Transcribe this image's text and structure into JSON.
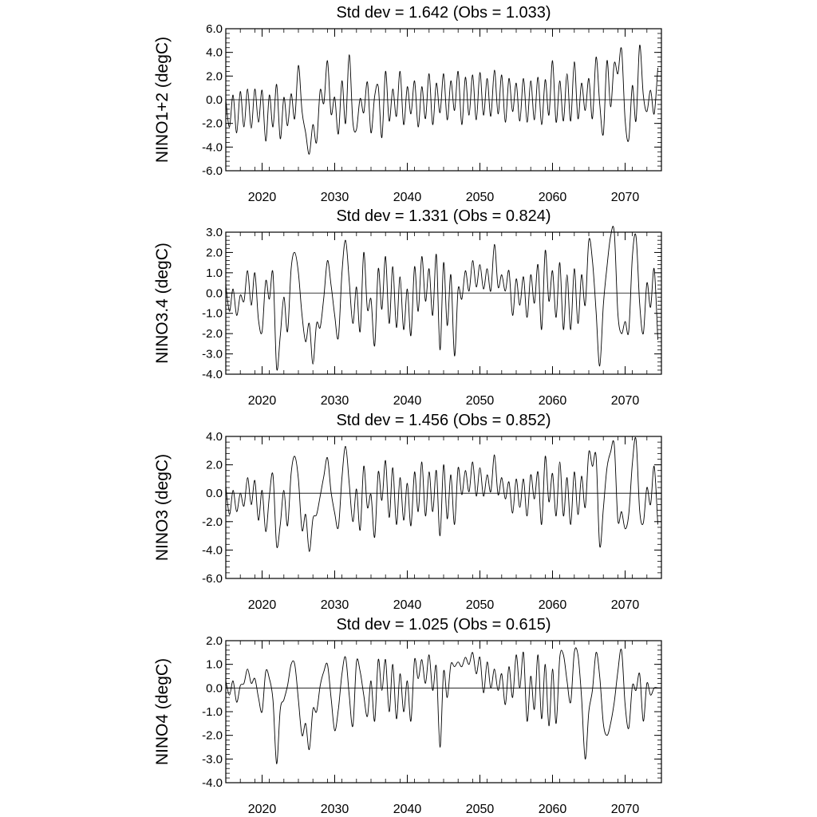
{
  "chart_data": [
    {
      "type": "line",
      "title": "Std dev = 1.642 (Obs = 1.033)",
      "ylabel": "NINO1+2 (degC)",
      "xlim": [
        2015,
        2075
      ],
      "ylim": [
        -6.0,
        6.0
      ],
      "yticks": [
        -6.0,
        -4.0,
        -2.0,
        0.0,
        2.0,
        4.0,
        6.0
      ],
      "ytick_labels": [
        "-6.0",
        "-4.0",
        "-2.0",
        "0.0",
        "2.0",
        "4.0",
        "6.0"
      ],
      "xticks": [
        2020,
        2030,
        2040,
        2050,
        2060,
        2070
      ],
      "xtick_labels": [
        "2020",
        "2030",
        "2040",
        "2050",
        "2060",
        "2070"
      ],
      "zero_line": true,
      "x": [
        2015.0,
        2015.5,
        2016.0,
        2016.5,
        2017.0,
        2017.5,
        2018.0,
        2018.5,
        2019.0,
        2019.5,
        2020.0,
        2020.5,
        2021.0,
        2021.5,
        2022.0,
        2022.5,
        2023.0,
        2023.5,
        2024.0,
        2024.5,
        2025.0,
        2025.5,
        2026.0,
        2026.5,
        2027.0,
        2027.5,
        2028.0,
        2028.5,
        2029.0,
        2029.5,
        2030.0,
        2030.5,
        2031.0,
        2031.5,
        2032.0,
        2032.5,
        2033.0,
        2033.5,
        2034.0,
        2034.5,
        2035.0,
        2035.5,
        2036.0,
        2036.5,
        2037.0,
        2037.5,
        2038.0,
        2038.5,
        2039.0,
        2039.5,
        2040.0,
        2040.5,
        2041.0,
        2041.5,
        2042.0,
        2042.5,
        2043.0,
        2043.5,
        2044.0,
        2044.5,
        2045.0,
        2045.5,
        2046.0,
        2046.5,
        2047.0,
        2047.5,
        2048.0,
        2048.5,
        2049.0,
        2049.5,
        2050.0,
        2050.5,
        2051.0,
        2051.5,
        2052.0,
        2052.5,
        2053.0,
        2053.5,
        2054.0,
        2054.5,
        2055.0,
        2055.5,
        2056.0,
        2056.5,
        2057.0,
        2057.5,
        2058.0,
        2058.5,
        2059.0,
        2059.5,
        2060.0,
        2060.5,
        2061.0,
        2061.5,
        2062.0,
        2062.5,
        2063.0,
        2063.5,
        2064.0,
        2064.5,
        2065.0,
        2065.5,
        2066.0,
        2066.5,
        2067.0,
        2067.5,
        2068.0,
        2068.5,
        2069.0,
        2069.5,
        2070.0,
        2070.5,
        2071.0,
        2071.5,
        2072.0,
        2072.5,
        2073.0,
        2073.5,
        2074.0,
        2074.5
      ],
      "y": [
        0.0,
        -2.3,
        0.4,
        -2.8,
        0.7,
        -2.3,
        0.9,
        -2.4,
        0.9,
        -1.9,
        0.8,
        -3.5,
        0.4,
        -2.3,
        1.3,
        -3.3,
        0.2,
        -2.2,
        0.5,
        -1.6,
        2.9,
        -1.0,
        -2.8,
        -4.6,
        -2.1,
        -3.6,
        0.8,
        -0.3,
        3.3,
        -1.2,
        0.2,
        -2.9,
        1.6,
        -2.0,
        3.8,
        -1.9,
        -2.5,
        0.1,
        -1.1,
        1.5,
        -2.8,
        0.3,
        1.1,
        -3.2,
        2.4,
        -1.8,
        0.9,
        -1.4,
        2.4,
        -2.1,
        1.1,
        -1.2,
        1.6,
        -2.3,
        1.1,
        -1.6,
        2.2,
        -2.1,
        1.4,
        -1.1,
        2.2,
        -1.7,
        1.6,
        -0.9,
        2.4,
        -2.1,
        1.9,
        -1.3,
        2.1,
        -1.7,
        2.3,
        -1.3,
        1.8,
        -1.4,
        2.5,
        -1.2,
        2.1,
        -1.9,
        1.8,
        -1.0,
        1.4,
        -1.8,
        1.8,
        -1.9,
        1.6,
        -1.7,
        1.9,
        -2.1,
        1.7,
        -1.3,
        3.3,
        -1.9,
        1.6,
        -1.8,
        2.2,
        -1.8,
        3.2,
        -1.6,
        1.4,
        -0.9,
        1.8,
        -1.6,
        3.6,
        -0.3,
        -2.9,
        3.3,
        -0.6,
        3.1,
        2.2,
        4.3,
        -1.7,
        -3.4,
        1.2,
        -1.8,
        4.6,
        0.4,
        -1.0,
        0.8,
        -1.2,
        2.7
      ]
    },
    {
      "type": "line",
      "title": "Std dev = 1.331 (Obs = 0.824)",
      "ylabel": "NINO3.4 (degC)",
      "xlim": [
        2015,
        2075
      ],
      "ylim": [
        -4.0,
        3.0
      ],
      "yticks": [
        -4.0,
        -3.0,
        -2.0,
        -1.0,
        0.0,
        1.0,
        2.0,
        3.0
      ],
      "ytick_labels": [
        "-4.0",
        "-3.0",
        "-2.0",
        "-1.0",
        "0.0",
        "1.0",
        "2.0",
        "3.0"
      ],
      "xticks": [
        2020,
        2030,
        2040,
        2050,
        2060,
        2070
      ],
      "xtick_labels": [
        "2020",
        "2030",
        "2040",
        "2050",
        "2060",
        "2070"
      ],
      "zero_line": true,
      "x": [
        2015.0,
        2015.5,
        2016.0,
        2016.5,
        2017.0,
        2017.5,
        2018.0,
        2018.5,
        2019.0,
        2019.5,
        2020.0,
        2020.5,
        2021.0,
        2021.5,
        2022.0,
        2022.5,
        2023.0,
        2023.5,
        2024.0,
        2024.5,
        2025.0,
        2025.5,
        2026.0,
        2026.5,
        2027.0,
        2027.5,
        2028.0,
        2028.5,
        2029.0,
        2029.5,
        2030.0,
        2030.5,
        2031.0,
        2031.5,
        2032.0,
        2032.5,
        2033.0,
        2033.5,
        2034.0,
        2034.5,
        2035.0,
        2035.5,
        2036.0,
        2036.5,
        2037.0,
        2037.5,
        2038.0,
        2038.5,
        2039.0,
        2039.5,
        2040.0,
        2040.5,
        2041.0,
        2041.5,
        2042.0,
        2042.5,
        2043.0,
        2043.5,
        2044.0,
        2044.5,
        2045.0,
        2045.5,
        2046.0,
        2046.5,
        2047.0,
        2047.5,
        2048.0,
        2048.5,
        2049.0,
        2049.5,
        2050.0,
        2050.5,
        2051.0,
        2051.5,
        2052.0,
        2052.5,
        2053.0,
        2053.5,
        2054.0,
        2054.5,
        2055.0,
        2055.5,
        2056.0,
        2056.5,
        2057.0,
        2057.5,
        2058.0,
        2058.5,
        2059.0,
        2059.5,
        2060.0,
        2060.5,
        2061.0,
        2061.5,
        2062.0,
        2062.5,
        2063.0,
        2063.5,
        2064.0,
        2064.5,
        2065.0,
        2065.5,
        2066.0,
        2066.5,
        2067.0,
        2067.5,
        2068.0,
        2068.5,
        2069.0,
        2069.5,
        2070.0,
        2070.5,
        2071.0,
        2071.5,
        2072.0,
        2072.5,
        2073.0,
        2073.5,
        2074.0,
        2074.5
      ],
      "y": [
        0.4,
        -0.9,
        0.2,
        -1.1,
        -0.1,
        -0.4,
        1.1,
        -0.6,
        1.0,
        -1.3,
        -1.9,
        0.6,
        -0.3,
        1.0,
        -3.7,
        -2.1,
        -0.2,
        -1.9,
        1.2,
        2.0,
        1.0,
        -1.1,
        -2.4,
        -1.5,
        -3.5,
        -1.5,
        -1.7,
        -0.2,
        1.6,
        0.4,
        -1.1,
        -2.2,
        1.0,
        2.6,
        0.6,
        -1.5,
        0.3,
        -1.9,
        2.0,
        -0.8,
        -0.3,
        -2.6,
        1.2,
        -0.8,
        1.8,
        -1.5,
        1.3,
        -1.7,
        0.8,
        -1.8,
        0.2,
        -2.1,
        1.3,
        -0.9,
        1.8,
        -0.4,
        1.2,
        -1.1,
        1.9,
        -2.8,
        1.5,
        -1.6,
        0.9,
        -3.1,
        0.2,
        -0.3,
        1.1,
        0.1,
        1.6,
        0.3,
        1.4,
        0.2,
        1.2,
        0.1,
        2.4,
        0.3,
        0.9,
        0.1,
        1.1,
        -1.1,
        0.7,
        -0.6,
        0.8,
        -1.2,
        0.9,
        -0.5,
        1.4,
        -1.8,
        2.1,
        -0.4,
        1.1,
        -1.2,
        1.5,
        -1.8,
        0.9,
        -1.8,
        1.2,
        -1.5,
        0.9,
        -0.6,
        2.6,
        1.6,
        -0.9,
        -3.6,
        -0.6,
        1.3,
        2.8,
        3.0,
        -1.0,
        -2.0,
        -1.4,
        -1.9,
        1.8,
        2.8,
        -0.5,
        -2.0,
        0.5,
        -0.7,
        1.2,
        -2.3
      ]
    },
    {
      "type": "line",
      "title": "Std dev = 1.456 (Obs = 0.852)",
      "ylabel": "NINO3 (degC)",
      "xlim": [
        2015,
        2075
      ],
      "ylim": [
        -6.0,
        4.0
      ],
      "yticks": [
        -6.0,
        -4.0,
        -2.0,
        0.0,
        2.0,
        4.0
      ],
      "ytick_labels": [
        "-6.0",
        "-4.0",
        "-2.0",
        "0.0",
        "2.0",
        "4.0"
      ],
      "xticks": [
        2020,
        2030,
        2040,
        2050,
        2060,
        2070
      ],
      "xtick_labels": [
        "2020",
        "2030",
        "2040",
        "2050",
        "2060",
        "2070"
      ],
      "zero_line": true,
      "x": [
        2015.0,
        2015.5,
        2016.0,
        2016.5,
        2017.0,
        2017.5,
        2018.0,
        2018.5,
        2019.0,
        2019.5,
        2020.0,
        2020.5,
        2021.0,
        2021.5,
        2022.0,
        2022.5,
        2023.0,
        2023.5,
        2024.0,
        2024.5,
        2025.0,
        2025.5,
        2026.0,
        2026.5,
        2027.0,
        2027.5,
        2028.0,
        2028.5,
        2029.0,
        2029.5,
        2030.0,
        2030.5,
        2031.0,
        2031.5,
        2032.0,
        2032.5,
        2033.0,
        2033.5,
        2034.0,
        2034.5,
        2035.0,
        2035.5,
        2036.0,
        2036.5,
        2037.0,
        2037.5,
        2038.0,
        2038.5,
        2039.0,
        2039.5,
        2040.0,
        2040.5,
        2041.0,
        2041.5,
        2042.0,
        2042.5,
        2043.0,
        2043.5,
        2044.0,
        2044.5,
        2045.0,
        2045.5,
        2046.0,
        2046.5,
        2047.0,
        2047.5,
        2048.0,
        2048.5,
        2049.0,
        2049.5,
        2050.0,
        2050.5,
        2051.0,
        2051.5,
        2052.0,
        2052.5,
        2053.0,
        2053.5,
        2054.0,
        2054.5,
        2055.0,
        2055.5,
        2056.0,
        2056.5,
        2057.0,
        2057.5,
        2058.0,
        2058.5,
        2059.0,
        2059.5,
        2060.0,
        2060.5,
        2061.0,
        2061.5,
        2062.0,
        2062.5,
        2063.0,
        2063.5,
        2064.0,
        2064.5,
        2065.0,
        2065.5,
        2066.0,
        2066.5,
        2067.0,
        2067.5,
        2068.0,
        2068.5,
        2069.0,
        2069.5,
        2070.0,
        2070.5,
        2071.0,
        2071.5,
        2072.0,
        2072.5,
        2073.0,
        2073.5,
        2074.0,
        2074.5
      ],
      "y": [
        0.5,
        -1.5,
        0.2,
        -1.3,
        0.0,
        -0.9,
        1.1,
        -0.8,
        0.9,
        -1.9,
        0.2,
        -2.7,
        -0.2,
        1.3,
        -3.7,
        -2.2,
        0.2,
        -2.3,
        1.4,
        2.6,
        1.0,
        -2.6,
        -1.5,
        -4.1,
        -1.8,
        -1.5,
        -0.2,
        1.2,
        2.5,
        0.1,
        -1.4,
        -2.4,
        1.1,
        3.3,
        0.7,
        -2.0,
        0.3,
        -2.6,
        1.9,
        -1.0,
        -0.1,
        -3.1,
        1.5,
        -0.5,
        2.3,
        -1.7,
        1.8,
        -2.2,
        1.1,
        -1.9,
        0.7,
        -2.3,
        1.5,
        -1.3,
        2.2,
        -1.6,
        1.5,
        -1.3,
        1.6,
        -3.0,
        2.0,
        -1.8,
        1.3,
        -2.2,
        1.8,
        -0.1,
        1.6,
        0.1,
        2.2,
        -0.2,
        1.8,
        -0.2,
        1.3,
        0.1,
        2.7,
        -0.1,
        1.1,
        -0.4,
        0.8,
        -1.4,
        1.0,
        -1.0,
        1.0,
        -1.6,
        1.3,
        -0.4,
        1.5,
        -2.2,
        2.6,
        -0.6,
        1.4,
        -1.6,
        2.2,
        -1.6,
        1.1,
        -2.2,
        1.5,
        -1.5,
        1.2,
        -1.0,
        2.9,
        1.9,
        2.6,
        -3.7,
        -1.1,
        1.8,
        2.9,
        3.4,
        -1.9,
        -1.3,
        -2.5,
        -1.5,
        2.1,
        3.8,
        -1.2,
        -2.1,
        0.4,
        -0.8,
        1.9,
        -2.2
      ]
    },
    {
      "type": "line",
      "title": "Std dev = 1.025 (Obs = 0.615)",
      "ylabel": "NINO4 (degC)",
      "xlim": [
        2015,
        2075
      ],
      "ylim": [
        -4.0,
        2.0
      ],
      "yticks": [
        -4.0,
        -3.0,
        -2.0,
        -1.0,
        0.0,
        1.0,
        2.0
      ],
      "ytick_labels": [
        "-4.0",
        "-3.0",
        "-2.0",
        "-1.0",
        "0.0",
        "1.0",
        "2.0"
      ],
      "xticks": [
        2020,
        2030,
        2040,
        2050,
        2060,
        2070
      ],
      "xtick_labels": [
        "2020",
        "2030",
        "2040",
        "2050",
        "2060",
        "2070"
      ],
      "zero_line": true,
      "x": [
        2015.0,
        2015.5,
        2016.0,
        2016.5,
        2017.0,
        2017.5,
        2018.0,
        2018.5,
        2019.0,
        2019.5,
        2020.0,
        2020.5,
        2021.0,
        2021.5,
        2022.0,
        2022.5,
        2023.0,
        2023.5,
        2024.0,
        2024.5,
        2025.0,
        2025.5,
        2026.0,
        2026.5,
        2027.0,
        2027.5,
        2028.0,
        2028.5,
        2029.0,
        2029.5,
        2030.0,
        2030.5,
        2031.0,
        2031.5,
        2032.0,
        2032.5,
        2033.0,
        2033.5,
        2034.0,
        2034.5,
        2035.0,
        2035.5,
        2036.0,
        2036.5,
        2037.0,
        2037.5,
        2038.0,
        2038.5,
        2039.0,
        2039.5,
        2040.0,
        2040.5,
        2041.0,
        2041.5,
        2042.0,
        2042.5,
        2043.0,
        2043.5,
        2044.0,
        2044.5,
        2045.0,
        2045.5,
        2046.0,
        2046.5,
        2047.0,
        2047.5,
        2048.0,
        2048.5,
        2049.0,
        2049.5,
        2050.0,
        2050.5,
        2051.0,
        2051.5,
        2052.0,
        2052.5,
        2053.0,
        2053.5,
        2054.0,
        2054.5,
        2055.0,
        2055.5,
        2056.0,
        2056.5,
        2057.0,
        2057.5,
        2058.0,
        2058.5,
        2059.0,
        2059.5,
        2060.0,
        2060.5,
        2061.0,
        2061.5,
        2062.0,
        2062.5,
        2063.0,
        2063.5,
        2064.0,
        2064.5,
        2065.0,
        2065.5,
        2066.0,
        2066.5,
        2067.0,
        2067.5,
        2068.0,
        2068.5,
        2069.0,
        2069.5,
        2070.0,
        2070.5,
        2071.0,
        2071.5,
        2072.0,
        2072.5,
        2073.0,
        2073.5,
        2074.0,
        2074.5
      ],
      "y": [
        0.3,
        -0.3,
        0.3,
        -0.6,
        0.1,
        0.2,
        0.8,
        0.2,
        0.4,
        -0.4,
        -1.0,
        0.7,
        0.4,
        -0.5,
        -3.2,
        -0.9,
        -0.5,
        0.1,
        1.0,
        1.0,
        -0.5,
        -2.0,
        -1.5,
        -2.6,
        -0.9,
        -1.0,
        0.1,
        0.7,
        1.0,
        -0.4,
        -1.8,
        -0.9,
        0.6,
        1.3,
        -0.3,
        -1.6,
        1.1,
        0.7,
        -0.3,
        -1.2,
        0.3,
        -1.4,
        1.2,
        -0.1,
        1.2,
        -1.0,
        1.0,
        -1.3,
        0.6,
        -1.0,
        0.3,
        -1.4,
        1.2,
        0.4,
        1.2,
        0.2,
        1.4,
        -0.1,
        0.9,
        -2.5,
        0.7,
        -0.4,
        1.0,
        0.9,
        1.1,
        0.9,
        1.3,
        1.0,
        1.5,
        0.6,
        1.3,
        -0.2,
        1.1,
        0.0,
        0.8,
        -0.1,
        0.6,
        -0.7,
        0.9,
        -0.4,
        1.4,
        0.0,
        1.5,
        -1.4,
        0.5,
        -0.9,
        1.4,
        -1.3,
        1.0,
        -1.6,
        0.8,
        -1.5,
        1.3,
        1.4,
        0.3,
        -0.6,
        1.5,
        1.4,
        -0.4,
        -3.0,
        -1.0,
        -0.1,
        1.5,
        0.5,
        -1.5,
        -2.0,
        -1.5,
        -0.6,
        0.7,
        1.6,
        -0.7,
        -1.7,
        0.1,
        -0.1,
        0.6,
        -1.4,
        0.2,
        -0.3,
        0.0,
        0.0
      ]
    }
  ]
}
